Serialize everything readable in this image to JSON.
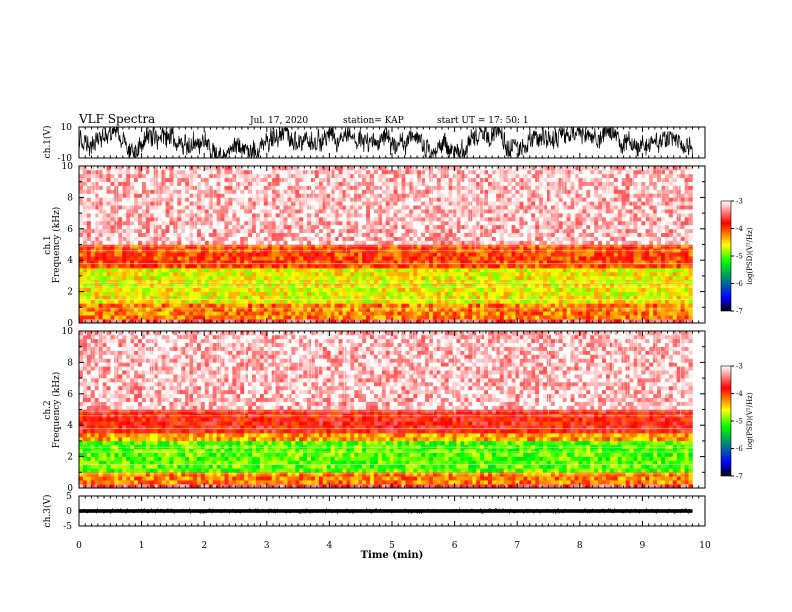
{
  "header": {
    "title": "VLF Spectra",
    "date": "Jul. 17, 2020",
    "station": "station= KAP",
    "start": "start UT = 17: 50: 1"
  },
  "chart_data": [
    {
      "type": "line",
      "name": "ch1-waveform",
      "ylabel": "ch.1(V)",
      "ylim": [
        -10,
        10
      ],
      "yticks": [
        "10",
        "-10"
      ],
      "xlim": [
        0,
        10
      ],
      "description_values": "dense noise oscillating roughly between -8 and 8 V over 0-9.8 min"
    },
    {
      "type": "heatmap",
      "name": "ch1-spectrogram",
      "ylabel": "ch.1 Frequency (kHz)",
      "ylim": [
        0,
        10
      ],
      "yticks": [
        "0",
        "2",
        "4",
        "6",
        "8",
        "10"
      ],
      "xlim": [
        0,
        10
      ],
      "x_end": 9.8,
      "bands": [
        {
          "from": 0.0,
          "to": 0.3,
          "level": -3.5
        },
        {
          "from": 0.3,
          "to": 1.2,
          "level": -4.2
        },
        {
          "from": 1.2,
          "to": 3.6,
          "level": -4.6
        },
        {
          "from": 3.6,
          "to": 5.0,
          "level": -4.0
        },
        {
          "from": 5.0,
          "to": 10.0,
          "level": -3.2
        }
      ]
    },
    {
      "type": "heatmap",
      "name": "ch2-spectrogram",
      "ylabel": "ch.2 Frequency (kHz)",
      "ylim": [
        0,
        10
      ],
      "yticks": [
        "0",
        "2",
        "4",
        "6",
        "8",
        "10"
      ],
      "xlim": [
        0,
        10
      ],
      "x_end": 9.8,
      "bands": [
        {
          "from": 0.0,
          "to": 0.3,
          "level": -3.5
        },
        {
          "from": 0.3,
          "to": 1.0,
          "level": -4.2
        },
        {
          "from": 1.0,
          "to": 3.0,
          "level": -5.0
        },
        {
          "from": 3.0,
          "to": 3.6,
          "level": -4.3
        },
        {
          "from": 3.6,
          "to": 5.0,
          "level": -3.8
        },
        {
          "from": 5.0,
          "to": 10.0,
          "level": -3.2
        }
      ]
    },
    {
      "type": "line",
      "name": "ch3-waveform",
      "ylabel": "ch.3(V)",
      "ylim": [
        -5,
        5
      ],
      "yticks": [
        "5",
        "0",
        "-5"
      ],
      "xlim": [
        0,
        10
      ],
      "description_values": "narrow band near 0 V"
    }
  ],
  "colorbar": {
    "label": "log(PSD)(V²/Hz)",
    "ticks": [
      "-3",
      "-4",
      "-5",
      "-6",
      "-7"
    ],
    "range": [
      -7,
      -3
    ],
    "colors": [
      "#000000",
      "#0000ff",
      "#00ff00",
      "#ffff00",
      "#ff0000",
      "#ffffff"
    ]
  },
  "xaxis": {
    "label": "Time (min)",
    "ticks": [
      "0",
      "1",
      "2",
      "3",
      "4",
      "5",
      "6",
      "7",
      "8",
      "9",
      "10"
    ]
  }
}
